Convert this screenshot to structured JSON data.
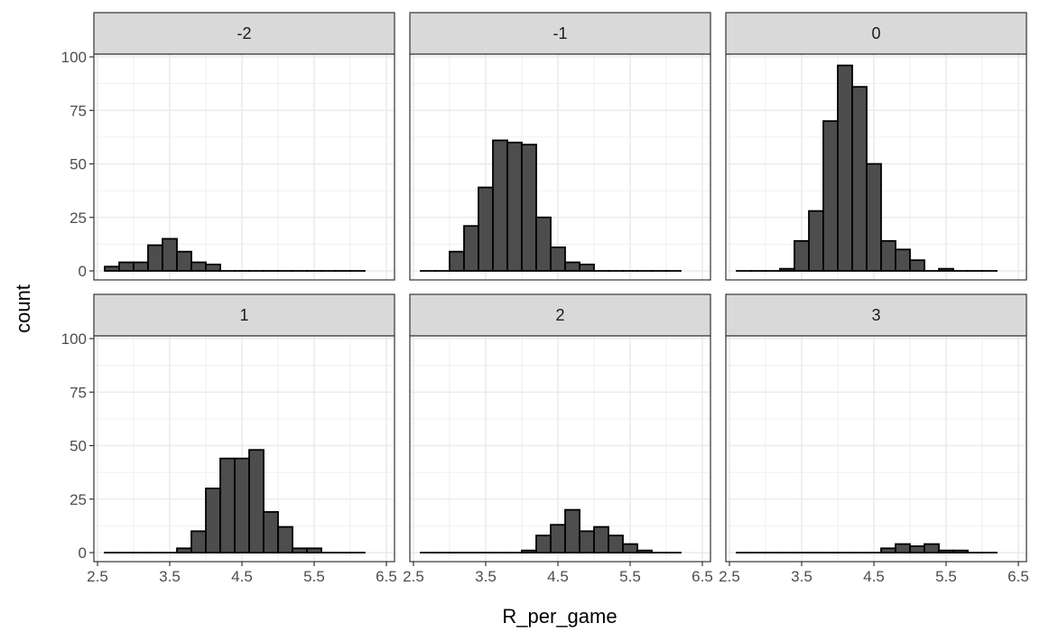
{
  "chart_data": {
    "type": "bar",
    "subtype": "faceted-histogram",
    "xlabel": "R_per_game",
    "ylabel": "count",
    "xlim": [
      2.5,
      6.5
    ],
    "ylim": [
      0,
      100
    ],
    "x_ticks": [
      "2.5",
      "3.5",
      "4.5",
      "5.5",
      "6.5"
    ],
    "y_ticks": [
      "0",
      "25",
      "50",
      "75",
      "100"
    ],
    "bin_width": 0.2,
    "bin_start": 2.6,
    "grid": true,
    "colors": {
      "bar_fill": "#4d4d4d",
      "bar_edge": "#000000",
      "strip_fill": "#d9d9d9",
      "grid": "#ebebeb"
    },
    "facets": [
      {
        "label": "-2",
        "values": [
          2,
          4,
          4,
          12,
          15,
          9,
          4,
          3,
          0,
          0,
          0,
          0,
          0,
          0,
          0,
          0,
          0,
          0
        ]
      },
      {
        "label": "-1",
        "values": [
          0,
          0,
          9,
          21,
          39,
          61,
          60,
          59,
          25,
          11,
          4,
          3,
          0,
          0,
          0,
          0,
          0,
          0
        ]
      },
      {
        "label": "0",
        "values": [
          0,
          0,
          0,
          1,
          14,
          28,
          70,
          96,
          86,
          50,
          14,
          10,
          5,
          0,
          1,
          0,
          0,
          0
        ]
      },
      {
        "label": "1",
        "values": [
          0,
          0,
          0,
          0,
          0,
          2,
          10,
          30,
          44,
          44,
          48,
          19,
          12,
          2,
          2,
          0,
          0,
          0
        ]
      },
      {
        "label": "2",
        "values": [
          0,
          0,
          0,
          0,
          0,
          0,
          0,
          1,
          8,
          13,
          20,
          10,
          12,
          8,
          4,
          1,
          0,
          0
        ]
      },
      {
        "label": "3",
        "values": [
          0,
          0,
          0,
          0,
          0,
          0,
          0,
          0,
          0,
          0,
          2,
          4,
          3,
          4,
          1,
          1,
          0,
          0
        ]
      }
    ]
  }
}
